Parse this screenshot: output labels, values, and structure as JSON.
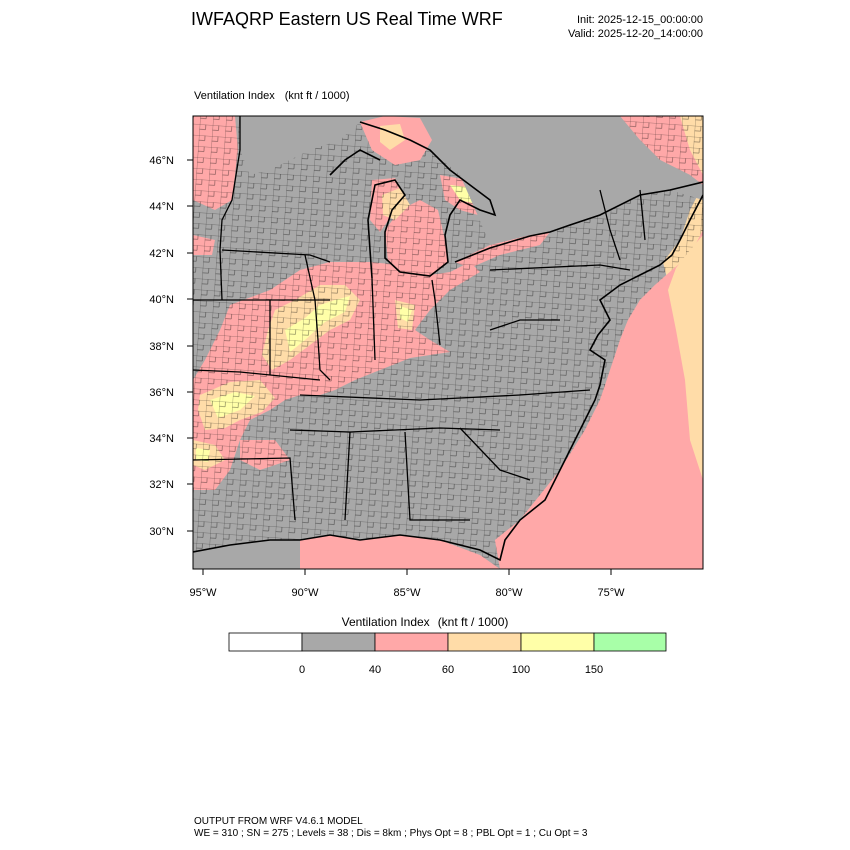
{
  "header": {
    "title": "IWFAQRP Eastern US Real Time WRF",
    "init": "Init: 2025-12-15_00:00:00",
    "valid": "Valid: 2025-12-20_14:00:00"
  },
  "map": {
    "field_label": "Ventilation Index",
    "units_label": "(knt ft / 1000)",
    "lat_labels": [
      "46°N",
      "44°N",
      "42°N",
      "40°N",
      "38°N",
      "36°N",
      "34°N",
      "32°N",
      "30°N"
    ],
    "lon_labels": [
      "95°W",
      "90°W",
      "85°W",
      "80°W",
      "75°W"
    ],
    "colors": {
      "ocean_below40": "#a8a8a8",
      "class_0_40": "#a8a8a8",
      "class_40_60": "#ffa8a8",
      "class_60_100": "#ffdca8",
      "class_100_150": "#ffffa8",
      "class_150_plus": "#a8ffa8",
      "lines": "#000000"
    }
  },
  "legend": {
    "title": "Ventilation Index",
    "units": "(knt ft / 1000)",
    "swatches": [
      "#ffffff",
      "#a8a8a8",
      "#ffa8a8",
      "#ffdca8",
      "#ffffa8",
      "#a8ffa8"
    ],
    "ticks": [
      "0",
      "40",
      "60",
      "100",
      "150"
    ]
  },
  "footer": {
    "line1": "OUTPUT FROM WRF V4.6.1 MODEL",
    "line2": "WE = 310 ; SN = 275 ; Levels = 38 ; Dis = 8km ; Phys Opt = 8 ; PBL Opt = 1 ; Cu Opt = 3"
  }
}
